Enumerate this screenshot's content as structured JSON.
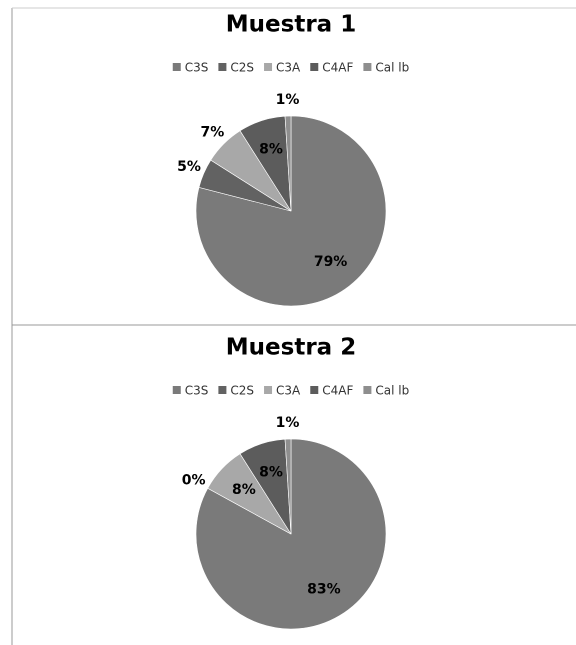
{
  "chart_data": [
    {
      "type": "pie",
      "title": "Muestra 1",
      "categories": [
        "C3S",
        "C2S",
        "C3A",
        "C4AF",
        "Cal lb"
      ],
      "values": [
        79,
        5,
        7,
        8,
        1
      ],
      "value_labels": [
        "79%",
        "5%",
        "7%",
        "8%",
        "1%"
      ],
      "colors": [
        "#7a7a7a",
        "#626262",
        "#a8a8a8",
        "#5c5c5c",
        "#8e8e8e"
      ],
      "legend": "top"
    },
    {
      "type": "pie",
      "title": "Muestra 2",
      "categories": [
        "C3S",
        "C2S",
        "C3A",
        "C4AF",
        "Cal lb"
      ],
      "values": [
        83,
        0,
        8,
        8,
        1
      ],
      "value_labels": [
        "83%",
        "0%",
        "8%",
        "8%",
        "1%"
      ],
      "colors": [
        "#7a7a7a",
        "#626262",
        "#a8a8a8",
        "#5c5c5c",
        "#8e8e8e"
      ],
      "legend": "top"
    }
  ]
}
